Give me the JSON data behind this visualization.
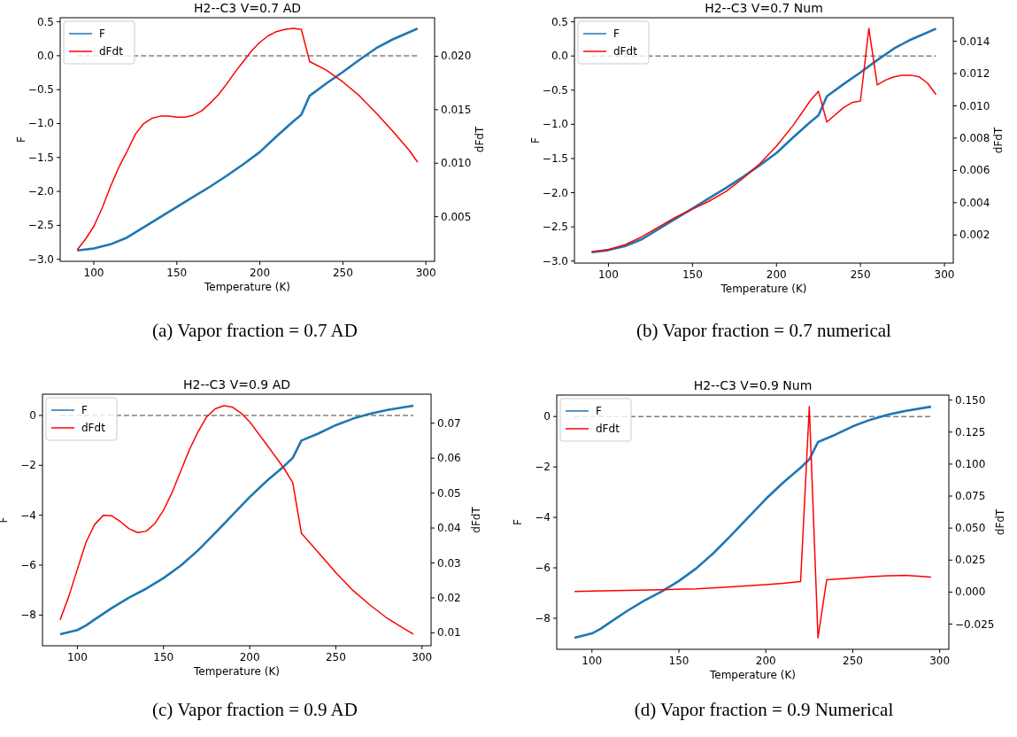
{
  "chart_data": [
    {
      "type": "line",
      "title": "H2--C3 V=0.7  AD",
      "xlabel": "Temperature (K)",
      "ylabel": "F",
      "y2label": "dFdT",
      "legend": "top left",
      "xlim": [
        79.75,
        305.25
      ],
      "xticks": [
        100,
        150,
        200,
        250,
        300
      ],
      "ylim": [
        -3.03,
        0.56
      ],
      "yticks": [
        {
          "value": -3,
          "label": "−3.0"
        },
        {
          "value": -2.5,
          "label": "−2.5"
        },
        {
          "value": -2,
          "label": "−2.0"
        },
        {
          "value": -1.5,
          "label": "−1.5"
        },
        {
          "value": -1,
          "label": "−1.0"
        },
        {
          "value": -0.5,
          "label": "−0.5"
        },
        {
          "value": 0,
          "label": "0.0"
        },
        {
          "value": 0.5,
          "label": "0.5"
        }
      ],
      "y2lim": [
        0.00083,
        0.0236
      ],
      "y2ticks": [
        0.005,
        {
          "value": 0.01,
          "label": "0.010"
        },
        0.015,
        {
          "value": 0.02,
          "label": "0.020"
        }
      ],
      "ref_lines": [
        {
          "axis": "y",
          "value": 0,
          "color": "#808080",
          "line_style": "dashed"
        }
      ],
      "annotations": [
        "(a) Vapor fraction = 0.7 AD"
      ],
      "series": [
        {
          "name": "F",
          "color": "#1f77b4",
          "x": [
            90,
            100,
            110,
            120,
            130,
            140,
            150,
            160,
            170,
            180,
            190,
            200,
            210,
            220,
            225,
            230,
            240,
            250,
            260,
            270,
            280,
            295
          ],
          "values": [
            -2.87,
            -2.84,
            -2.78,
            -2.68,
            -2.53,
            -2.38,
            -2.23,
            -2.08,
            -1.93,
            -1.77,
            -1.6,
            -1.42,
            -1.19,
            -0.97,
            -0.87,
            -0.59,
            -0.41,
            -0.24,
            -0.06,
            0.11,
            0.24,
            0.4
          ]
        },
        {
          "name": "dFdt",
          "color": "#ff0000",
          "axis": "y2",
          "x": [
            90,
            95,
            100,
            105,
            110,
            115,
            120,
            125,
            130,
            135,
            140,
            145,
            150,
            155,
            160,
            165,
            170,
            175,
            180,
            185,
            190,
            195,
            200,
            205,
            210,
            215,
            220,
            225,
            230,
            240,
            250,
            260,
            270,
            280,
            290,
            295
          ],
          "values": [
            0.0019,
            0.0029,
            0.0041,
            0.0058,
            0.0078,
            0.0096,
            0.0111,
            0.0127,
            0.0137,
            0.0142,
            0.0144,
            0.0144,
            0.0143,
            0.0143,
            0.0145,
            0.0149,
            0.0156,
            0.0164,
            0.0174,
            0.0185,
            0.0195,
            0.0205,
            0.0213,
            0.0219,
            0.0223,
            0.0225,
            0.0226,
            0.0225,
            0.0195,
            0.0187,
            0.0176,
            0.0163,
            0.0147,
            0.013,
            0.0112,
            0.0101
          ]
        }
      ]
    },
    {
      "type": "line",
      "title": "H2--C3 V=0.7  Num",
      "xlabel": "Temperature (K)",
      "ylabel": "F",
      "y2label": "dFdT",
      "legend": "top left",
      "xlim": [
        79.75,
        305.25
      ],
      "xticks": [
        100,
        150,
        200,
        250,
        300
      ],
      "ylim": [
        -3.03,
        0.56
      ],
      "yticks": [
        {
          "value": -3,
          "label": "−3.0"
        },
        {
          "value": -2.5,
          "label": "−2.5"
        },
        {
          "value": -2,
          "label": "−2.0"
        },
        {
          "value": -1.5,
          "label": "−1.5"
        },
        {
          "value": -1,
          "label": "−1.0"
        },
        {
          "value": -0.5,
          "label": "−0.5"
        },
        {
          "value": 0,
          "label": "0.0"
        },
        {
          "value": 0.5,
          "label": "0.5"
        }
      ],
      "y2lim": [
        0.00026,
        0.01546
      ],
      "y2ticks": [
        0.002,
        0.004,
        0.006,
        0.008,
        {
          "value": 0.01,
          "label": "0.010"
        },
        0.012,
        0.014
      ],
      "ref_lines": [
        {
          "axis": "y",
          "value": 0,
          "color": "#808080",
          "line_style": "dashed"
        }
      ],
      "annotations": [
        "(b) Vapor fraction = 0.7 numerical"
      ],
      "series": [
        {
          "name": "F",
          "color": "#1f77b4",
          "x": [
            90,
            100,
            110,
            120,
            130,
            140,
            150,
            160,
            170,
            180,
            190,
            200,
            210,
            220,
            225,
            230,
            240,
            250,
            260,
            270,
            280,
            295
          ],
          "values": [
            -2.87,
            -2.84,
            -2.78,
            -2.68,
            -2.53,
            -2.38,
            -2.23,
            -2.08,
            -1.93,
            -1.77,
            -1.6,
            -1.42,
            -1.19,
            -0.97,
            -0.87,
            -0.59,
            -0.41,
            -0.24,
            -0.06,
            0.11,
            0.24,
            0.4
          ]
        },
        {
          "name": "dFdt",
          "color": "#ff0000",
          "axis": "y2",
          "x": [
            90,
            100,
            110,
            120,
            130,
            140,
            150,
            160,
            170,
            180,
            190,
            200,
            210,
            220,
            225,
            230,
            240,
            245,
            250,
            255,
            260,
            265,
            270,
            275,
            280,
            285,
            290,
            295
          ],
          "values": [
            0.00095,
            0.0011,
            0.0014,
            0.0019,
            0.0025,
            0.0031,
            0.0036,
            0.0041,
            0.0047,
            0.0055,
            0.0064,
            0.0075,
            0.0088,
            0.0103,
            0.0109,
            0.009,
            0.0099,
            0.0102,
            0.0103,
            0.0148,
            0.0113,
            0.0116,
            0.0118,
            0.0119,
            0.0119,
            0.0118,
            0.0114,
            0.0107
          ]
        }
      ]
    },
    {
      "type": "line",
      "title": "H2--C3 V=0.9  AD",
      "xlabel": "Temperature (K)",
      "ylabel": "F",
      "y2label": "dFdT",
      "legend": "top left",
      "xlim": [
        79.75,
        305.25
      ],
      "xticks": [
        100,
        150,
        200,
        250,
        300
      ],
      "ylim": [
        -9.23,
        0.85
      ],
      "yticks": [
        {
          "value": -8,
          "label": "−8"
        },
        {
          "value": -6,
          "label": "−6"
        },
        {
          "value": -4,
          "label": "−4"
        },
        {
          "value": -2,
          "label": "−2"
        },
        {
          "value": 0,
          "label": "0"
        }
      ],
      "y2lim": [
        0.0063,
        0.0783
      ],
      "y2ticks": [
        0.01,
        0.02,
        0.03,
        0.04,
        0.05,
        0.06,
        0.07
      ],
      "ref_lines": [
        {
          "axis": "y",
          "value": 0,
          "color": "#808080",
          "line_style": "dashed"
        }
      ],
      "annotations": [
        "(c) Vapor fraction = 0.9 AD"
      ],
      "series": [
        {
          "name": "F",
          "color": "#1f77b4",
          "x": [
            90,
            100,
            105,
            110,
            120,
            130,
            140,
            150,
            160,
            170,
            180,
            190,
            200,
            210,
            220,
            225,
            230,
            240,
            250,
            260,
            270,
            280,
            295
          ],
          "values": [
            -8.77,
            -8.6,
            -8.42,
            -8.18,
            -7.72,
            -7.3,
            -6.94,
            -6.52,
            -6.02,
            -5.41,
            -4.71,
            -3.99,
            -3.27,
            -2.62,
            -2.03,
            -1.7,
            -1.01,
            -0.72,
            -0.39,
            -0.13,
            0.07,
            0.22,
            0.39
          ]
        },
        {
          "name": "dFdt",
          "color": "#ff0000",
          "axis": "y2",
          "x": [
            90,
            95,
            100,
            105,
            110,
            115,
            120,
            125,
            130,
            135,
            140,
            145,
            150,
            155,
            160,
            165,
            170,
            175,
            180,
            185,
            190,
            195,
            200,
            210,
            220,
            225,
            230,
            240,
            250,
            260,
            270,
            280,
            290,
            295
          ],
          "values": [
            0.0137,
            0.0204,
            0.0282,
            0.0359,
            0.041,
            0.0436,
            0.0435,
            0.0418,
            0.0398,
            0.0387,
            0.0391,
            0.0413,
            0.0451,
            0.0502,
            0.0563,
            0.0624,
            0.0675,
            0.0718,
            0.0741,
            0.075,
            0.0746,
            0.0729,
            0.0704,
            0.0638,
            0.057,
            0.053,
            0.0385,
            0.0329,
            0.0272,
            0.0221,
            0.0179,
            0.0141,
            0.0111,
            0.0096
          ]
        }
      ]
    },
    {
      "type": "line",
      "title": "H2--C3 V=0.9  Num",
      "xlabel": "Temperature (K)",
      "ylabel": "F",
      "y2label": "dFdT",
      "legend": "top left",
      "xlim": [
        79.75,
        305.25
      ],
      "xticks": [
        100,
        150,
        200,
        250,
        300
      ],
      "ylim": [
        -9.23,
        0.85
      ],
      "yticks": [
        {
          "value": -8,
          "label": "−8"
        },
        {
          "value": -6,
          "label": "−6"
        },
        {
          "value": -4,
          "label": "−4"
        },
        {
          "value": -2,
          "label": "−2"
        },
        {
          "value": 0,
          "label": "0"
        }
      ],
      "y2lim": [
        -0.0447,
        0.1539
      ],
      "y2ticks": [
        {
          "value": -0.025,
          "label": "−0.025"
        },
        {
          "value": 0,
          "label": "0.000"
        },
        {
          "value": 0.025,
          "label": "0.025"
        },
        {
          "value": 0.05,
          "label": "0.050"
        },
        {
          "value": 0.075,
          "label": "0.075"
        },
        {
          "value": 0.1,
          "label": "0.100"
        },
        {
          "value": 0.125,
          "label": "0.125"
        },
        {
          "value": 0.15,
          "label": "0.150"
        }
      ],
      "ref_lines": [
        {
          "axis": "y",
          "value": 0,
          "color": "#808080",
          "line_style": "dashed"
        }
      ],
      "annotations": [
        "(d) Vapor fraction = 0.9 Numerical"
      ],
      "series": [
        {
          "name": "F",
          "color": "#1f77b4",
          "x": [
            90,
            100,
            105,
            110,
            120,
            130,
            140,
            150,
            160,
            170,
            180,
            190,
            200,
            210,
            220,
            225,
            230,
            240,
            250,
            260,
            270,
            280,
            295
          ],
          "values": [
            -8.77,
            -8.6,
            -8.42,
            -8.18,
            -7.72,
            -7.3,
            -6.94,
            -6.52,
            -6.02,
            -5.41,
            -4.71,
            -3.99,
            -3.27,
            -2.62,
            -2.03,
            -1.7,
            -1.01,
            -0.72,
            -0.39,
            -0.13,
            0.07,
            0.22,
            0.39
          ]
        },
        {
          "name": "dFdt",
          "color": "#ff0000",
          "axis": "y2",
          "x": [
            90,
            100,
            120,
            140,
            160,
            180,
            200,
            210,
            220,
            225,
            230,
            235,
            250,
            260,
            270,
            280,
            290,
            295
          ],
          "values": [
            0.0005,
            0.0008,
            0.0013,
            0.0018,
            0.0026,
            0.0041,
            0.0059,
            0.0069,
            0.0082,
            0.1449,
            -0.0357,
            0.0097,
            0.011,
            0.012,
            0.0128,
            0.013,
            0.0122,
            0.0117
          ]
        }
      ]
    }
  ]
}
